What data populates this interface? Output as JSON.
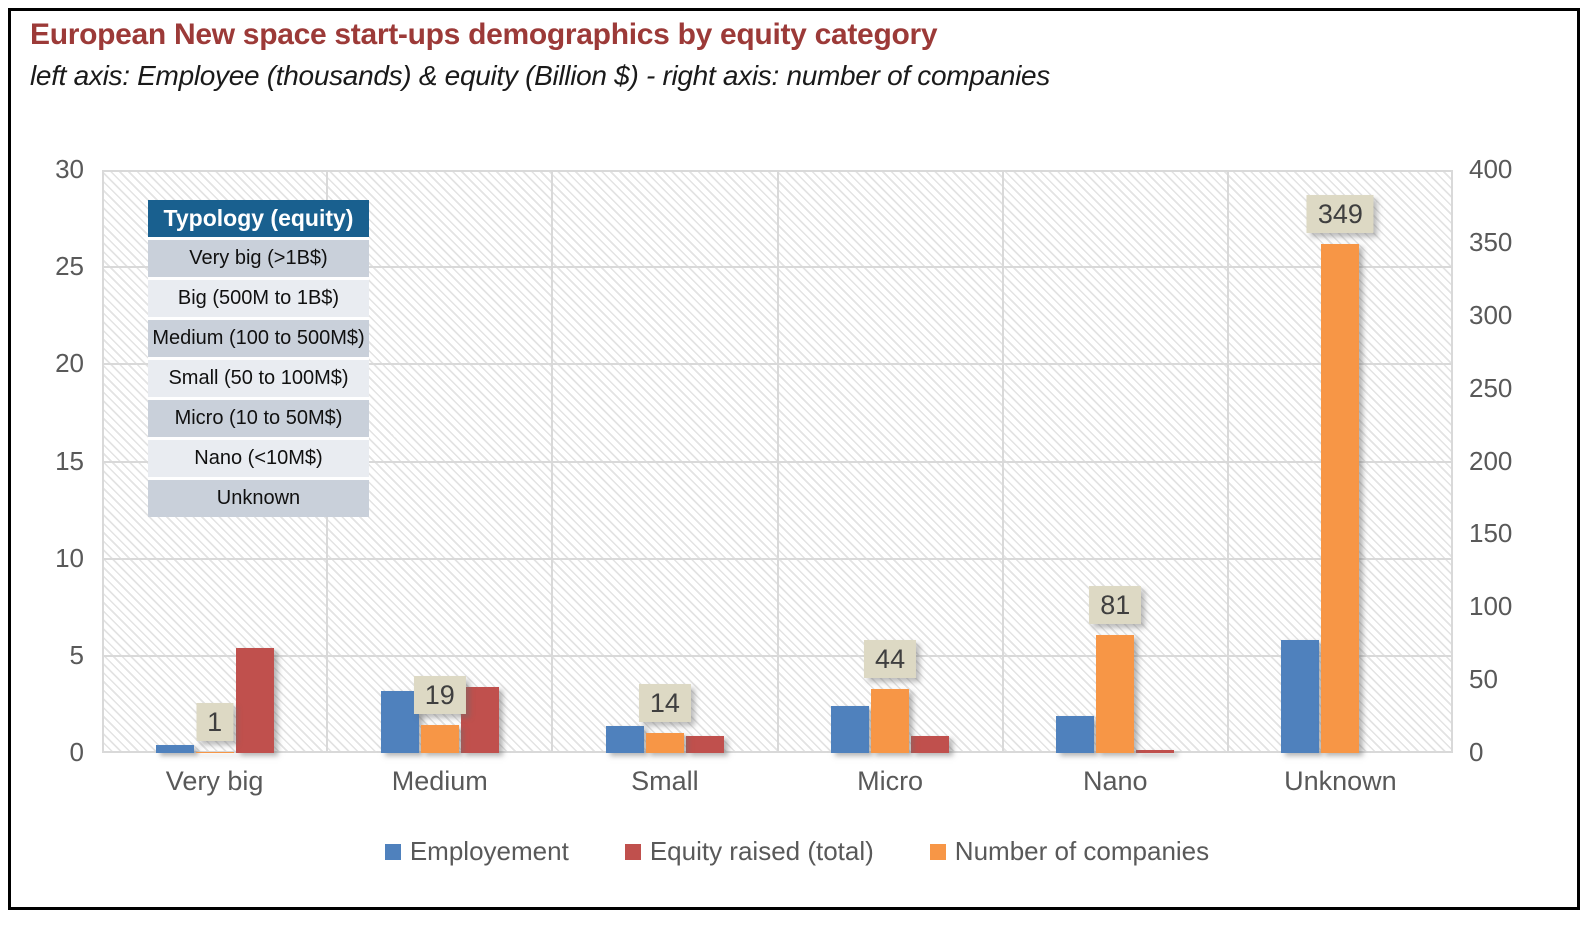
{
  "header": {
    "title": "European New space start-ups demographics by equity category",
    "subtitle": "left axis: Employee (thousands) & equity (Billion $) - right axis: number of companies"
  },
  "typology_table": {
    "header": "Typology (equity)",
    "rows": [
      "Very big (>1B$)",
      "Big (500M to 1B$)",
      "Medium (100 to 500M$)",
      "Small (50 to 100M$)",
      "Micro (10 to 50M$)",
      "Nano (<10M$)",
      "Unknown"
    ]
  },
  "chart_data": {
    "type": "bar",
    "title": "European New space start-ups demographics by equity category",
    "subtitle": "left axis: Employee (thousands) & equity (Billion $) - right axis: number of companies",
    "categories": [
      "Very big",
      "Medium",
      "Small",
      "Micro",
      "Nano",
      "Unknown"
    ],
    "series": [
      {
        "name": "Employement",
        "axis": "left",
        "color": "#4F81BD",
        "values": [
          0.4,
          3.2,
          1.4,
          2.4,
          1.9,
          5.8
        ]
      },
      {
        "name": "Equity raised (total)",
        "axis": "left",
        "color": "#C0504D",
        "values": [
          5.4,
          3.4,
          0.9,
          0.9,
          0.15,
          0
        ]
      },
      {
        "name": "Number of companies",
        "axis": "right",
        "color": "#F79646",
        "values": [
          1,
          19,
          14,
          44,
          81,
          349
        ],
        "data_labels": [
          "1",
          "19",
          "14",
          "44",
          "81",
          "349"
        ]
      }
    ],
    "left_axis": {
      "range": [
        0,
        30
      ],
      "ticks": [
        0,
        5,
        10,
        15,
        20,
        25,
        30
      ]
    },
    "right_axis": {
      "range": [
        0,
        400
      ],
      "ticks": [
        0,
        50,
        100,
        150,
        200,
        250,
        300,
        350,
        400
      ]
    },
    "legend": [
      {
        "label": "Employement",
        "color": "#4F81BD"
      },
      {
        "label": "Equity raised (total)",
        "color": "#C0504D"
      },
      {
        "label": "Number of companies",
        "color": "#F79646"
      }
    ],
    "legend_position": "bottom",
    "grid": true,
    "plot_background": "diagonal-hatch"
  },
  "colors": {
    "title": "#9C3A38",
    "axis_text": "#595959",
    "gridline": "#D9D9D9",
    "data_label_bg": "#DDD9C4",
    "data_label_text": "#3F3F3F",
    "table_header_bg": "#19608F",
    "table_row_dark": "#C9D0DA",
    "table_row_light": "#E9ECF1",
    "frame_border": "#000000"
  }
}
